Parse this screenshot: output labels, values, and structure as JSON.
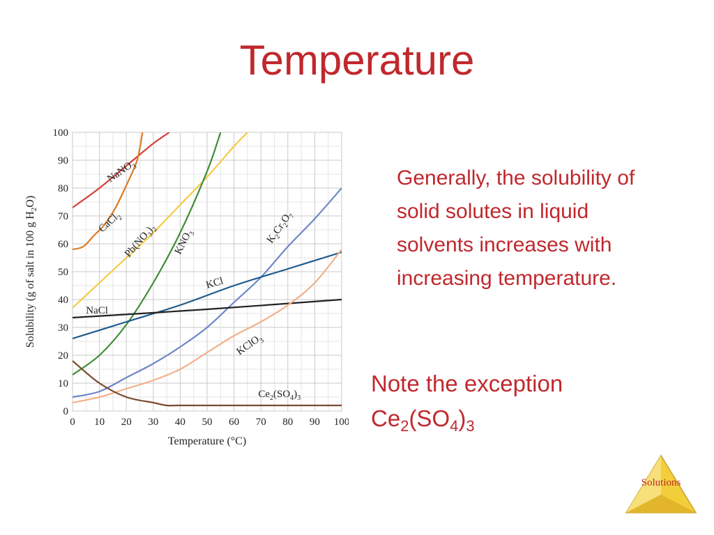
{
  "slide": {
    "title": "Temperature",
    "bullet": "Generally, the solubility of solid solutes in liquid solvents increases with increasing temperature.",
    "note": "Note the exception",
    "exception_formula": {
      "parts": [
        "Ce",
        "2",
        "(SO",
        "4",
        ")",
        "3"
      ]
    },
    "badge_label": "Solutions",
    "colors": {
      "title": "#c0282d",
      "text": "#c0282d",
      "badge_fill": "#f2cf3a",
      "badge_label": "#c0282d"
    }
  },
  "chart_data": {
    "type": "line",
    "xlabel": "Temperature (°C)",
    "ylabel_parts": [
      "Solubility (g of salt in 100 g H",
      "2",
      "O)"
    ],
    "xlim": [
      0,
      100
    ],
    "ylim": [
      0,
      100
    ],
    "xticks": [
      0,
      10,
      20,
      30,
      40,
      50,
      60,
      70,
      80,
      90,
      100
    ],
    "yticks": [
      0,
      10,
      20,
      30,
      40,
      50,
      60,
      70,
      80,
      90,
      100
    ],
    "grid": true,
    "series": [
      {
        "name": "NaNO3",
        "label_parts": [
          "NaNO",
          "3"
        ],
        "color": "#d6403a",
        "x": [
          0,
          10,
          20,
          30,
          36
        ],
        "y": [
          73,
          80,
          88,
          96,
          100
        ]
      },
      {
        "name": "CaCl2",
        "label_parts": [
          "CaCl",
          "2"
        ],
        "color": "#e07a22",
        "x": [
          0,
          4,
          8,
          12,
          16,
          20,
          24,
          26
        ],
        "y": [
          58,
          59,
          63,
          67,
          73,
          81,
          90,
          100
        ]
      },
      {
        "name": "Pb(NO3)2",
        "label_parts": [
          "Pb(NO",
          "3",
          ")",
          "2"
        ],
        "color": "#f6c945",
        "x": [
          0,
          10,
          20,
          30,
          40,
          50,
          60,
          65
        ],
        "y": [
          37,
          46,
          55,
          64,
          74,
          84,
          95,
          100
        ]
      },
      {
        "name": "KNO3",
        "label_parts": [
          "KNO",
          "3"
        ],
        "color": "#3f8c35",
        "x": [
          0,
          10,
          20,
          30,
          40,
          50,
          55
        ],
        "y": [
          13,
          20,
          31,
          46,
          64,
          86,
          100
        ]
      },
      {
        "name": "K2Cr2O7",
        "label_parts": [
          "K",
          "2",
          "Cr",
          "2",
          "O",
          "7"
        ],
        "color": "#6f87c7",
        "x": [
          0,
          10,
          20,
          30,
          40,
          50,
          60,
          70,
          80,
          90,
          100
        ],
        "y": [
          5,
          7,
          12,
          17,
          23,
          30,
          39,
          48,
          59,
          69,
          80
        ]
      },
      {
        "name": "KCl",
        "label_parts": [
          "KCl"
        ],
        "color": "#1e5a8c",
        "x": [
          0,
          20,
          40,
          60,
          80,
          100
        ],
        "y": [
          26,
          32,
          38,
          45,
          51,
          57
        ]
      },
      {
        "name": "NaCl",
        "label_parts": [
          "NaCl"
        ],
        "color": "#222222",
        "x": [
          0,
          50,
          100
        ],
        "y": [
          33.5,
          36.5,
          40
        ]
      },
      {
        "name": "KClO3",
        "label_parts": [
          "KClO",
          "3"
        ],
        "color": "#f2b08a",
        "x": [
          0,
          10,
          20,
          30,
          40,
          50,
          60,
          70,
          80,
          90,
          100
        ],
        "y": [
          3,
          5,
          8,
          11,
          15,
          21,
          27,
          32,
          38,
          46,
          58
        ]
      },
      {
        "name": "Ce2(SO4)3",
        "label_parts": [
          "Ce",
          "2",
          "(SO",
          "4",
          ")",
          "3"
        ],
        "color": "#7a4a2e",
        "x": [
          0,
          10,
          20,
          30,
          35,
          40,
          60,
          80,
          100
        ],
        "y": [
          18,
          10,
          5,
          3,
          2,
          2,
          2,
          2,
          2
        ]
      }
    ]
  }
}
